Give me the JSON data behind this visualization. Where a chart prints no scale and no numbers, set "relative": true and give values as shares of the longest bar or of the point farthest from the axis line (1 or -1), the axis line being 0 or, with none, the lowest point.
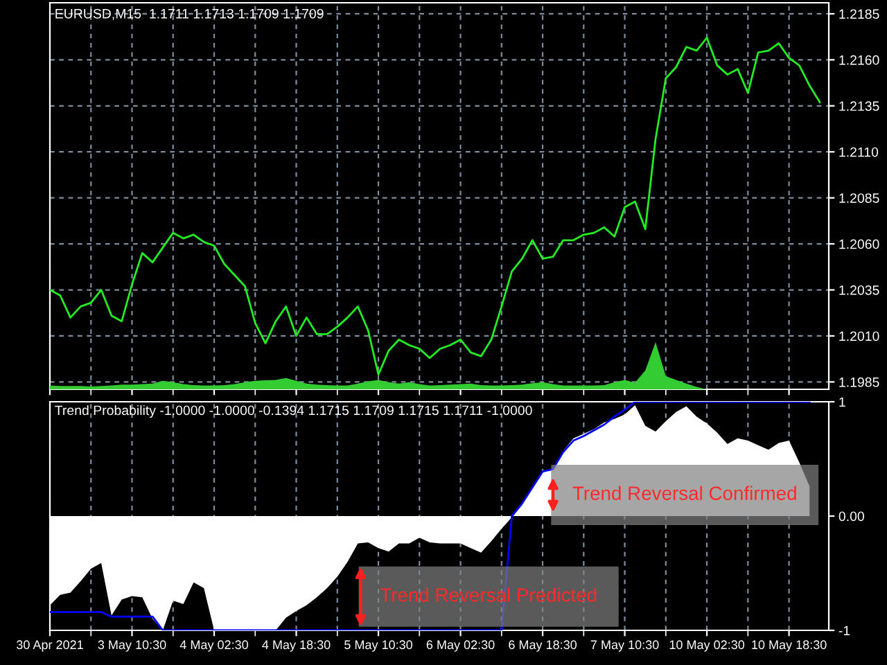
{
  "chart_data": [
    {
      "type": "line",
      "title": "EURUSD,M15  1.1711 1.1713 1.1709 1.1709",
      "categories": [
        null,
        null,
        null,
        null,
        null,
        null,
        null,
        null,
        null,
        null,
        null,
        null,
        null,
        null,
        null,
        null,
        null,
        null,
        null,
        null,
        null,
        null,
        null,
        null,
        null,
        null,
        null,
        null,
        null,
        null,
        null,
        null,
        null,
        null,
        null,
        null,
        null,
        null,
        null,
        null,
        null,
        null,
        null,
        null,
        null,
        null,
        null,
        null,
        null,
        null,
        null,
        null,
        null,
        null,
        null,
        null,
        null,
        null,
        null,
        null,
        null,
        null,
        null,
        null,
        null,
        null,
        null,
        null,
        null,
        null,
        null,
        null,
        null,
        null,
        null,
        null
      ],
      "series": [
        {
          "color": "#22ee22",
          "values": [
            1.2035,
            1.2032,
            1.202,
            1.2026,
            1.2028,
            1.2035,
            1.2021,
            1.2018,
            1.2038,
            1.2055,
            1.205,
            1.2058,
            1.2066,
            1.2063,
            1.2065,
            1.2061,
            1.2059,
            1.2049,
            1.2043,
            1.2037,
            1.2017,
            1.2006,
            1.2018,
            1.2026,
            1.201,
            1.202,
            1.2011,
            1.2011,
            1.2015,
            1.202,
            1.2026,
            1.2013,
            1.1989,
            1.2002,
            1.2008,
            1.2005,
            1.2003,
            1.1998,
            1.2003,
            1.2005,
            1.2008,
            1.2001,
            1.1999,
            1.2008,
            1.2026,
            1.2045,
            1.2052,
            1.2062,
            1.2052,
            1.2053,
            1.2062,
            1.2062,
            1.2065,
            1.2066,
            1.2069,
            1.2064,
            1.208,
            1.2083,
            1.2068,
            1.2117,
            1.215,
            1.2156,
            1.2167,
            1.2165,
            1.2172,
            1.2157,
            1.2152,
            1.2155,
            1.2142,
            1.2164,
            1.2165,
            1.2169,
            1.2161,
            1.2157,
            1.2146,
            1.2137
          ]
        }
      ],
      "ylim": [
        1.1981,
        1.2191
      ],
      "yticks": [
        {
          "value": 1.1985,
          "label": "1.1985"
        },
        {
          "value": 1.201,
          "label": "1.2010"
        },
        {
          "value": 1.2035,
          "label": "1.2035"
        },
        {
          "value": 1.206,
          "label": "1.2060"
        },
        {
          "value": 1.2085,
          "label": "1.2085"
        },
        {
          "value": 1.211,
          "label": "1.2110"
        },
        {
          "value": 1.2135,
          "label": "1.2135"
        },
        {
          "value": 1.216,
          "label": "1.2160"
        },
        {
          "value": 1.2185,
          "label": "1.2185"
        }
      ],
      "grid": true,
      "tick_labels": "y"
    },
    {
      "type": "area",
      "relative": true,
      "tick_labels": false,
      "categories": [
        null,
        null,
        null,
        null,
        null,
        null,
        null,
        null,
        null,
        null,
        null,
        null,
        null,
        null,
        null,
        null,
        null,
        null,
        null,
        null,
        null,
        null,
        null,
        null,
        null,
        null,
        null,
        null,
        null,
        null,
        null,
        null,
        null,
        null,
        null,
        null,
        null,
        null,
        null,
        null,
        null,
        null,
        null,
        null,
        null,
        null,
        null,
        null,
        null,
        null,
        null,
        null,
        null,
        null,
        null,
        null,
        null,
        null,
        null,
        null,
        null,
        null,
        null,
        null,
        null,
        null,
        null,
        null,
        null,
        null,
        null,
        null,
        null,
        null,
        null,
        null
      ],
      "series": [
        {
          "color": "#33cc33",
          "values": [
            0.08,
            0.07,
            0.07,
            0.07,
            0.06,
            0.07,
            0.08,
            0.1,
            0.1,
            0.11,
            0.12,
            0.18,
            0.15,
            0.11,
            0.09,
            0.08,
            0.08,
            0.09,
            0.11,
            0.15,
            0.18,
            0.19,
            0.2,
            0.24,
            0.18,
            0.12,
            0.1,
            0.09,
            0.08,
            0.08,
            0.12,
            0.17,
            0.2,
            0.15,
            0.12,
            0.15,
            0.11,
            0.08,
            0.09,
            0.1,
            0.11,
            0.12,
            0.09,
            0.08,
            0.08,
            0.09,
            0.1,
            0.13,
            0.15,
            0.11,
            0.08,
            0.08,
            0.08,
            0.08,
            0.09,
            0.15,
            0.2,
            0.14,
            0.4,
            1,
            0.28,
            0.2,
            0.12,
            0.05,
            0,
            null,
            null,
            null,
            null,
            null,
            null,
            null,
            null,
            null,
            null,
            null
          ]
        }
      ]
    },
    {
      "type": "area",
      "title": "Trend Probability -1.0000 -1.0000 -0.1394 1.1715 1.1709 1.1715 1.1711 -1.0000",
      "categories": [
        "30 Apr 2021",
        null,
        null,
        null,
        null,
        null,
        null,
        null,
        "3 May 10:30",
        null,
        null,
        null,
        null,
        null,
        null,
        null,
        "4 May 02:30",
        null,
        null,
        null,
        null,
        null,
        null,
        null,
        "4 May 18:30",
        null,
        null,
        null,
        null,
        null,
        null,
        null,
        "5 May 10:30",
        null,
        null,
        null,
        null,
        null,
        null,
        null,
        "6 May 02:30",
        null,
        null,
        null,
        null,
        null,
        null,
        null,
        "6 May 18:30",
        null,
        null,
        null,
        null,
        null,
        null,
        null,
        "7 May 10:30",
        null,
        null,
        null,
        null,
        null,
        null,
        null,
        "10 May 02:30",
        null,
        null,
        null,
        null,
        null,
        null,
        null,
        "10 May 18:30",
        null,
        null,
        null
      ],
      "series": [
        {
          "color": "#ffffff",
          "values": [
            -0.78,
            -0.69,
            -0.67,
            -0.57,
            -0.46,
            -0.41,
            -0.87,
            -0.73,
            -0.7,
            -0.71,
            -0.9,
            -1,
            -0.74,
            -0.77,
            -0.58,
            -0.63,
            -1,
            -1,
            -1,
            -1,
            -1,
            -1,
            -1,
            -0.89,
            -0.83,
            -0.78,
            -0.71,
            -0.63,
            -0.53,
            -0.4,
            -0.24,
            -0.23,
            -0.28,
            -0.31,
            -0.24,
            -0.24,
            -0.19,
            -0.23,
            -0.24,
            -0.24,
            -0.24,
            -0.28,
            -0.32,
            -0.22,
            -0.11,
            -0.01,
            0.1,
            0.25,
            0.39,
            0.41,
            0.57,
            0.68,
            0.72,
            0.76,
            0.82,
            0.85,
            0.89,
            0.97,
            0.79,
            0.74,
            0.83,
            0.91,
            0.96,
            0.87,
            0.81,
            0.73,
            0.63,
            0.68,
            0.66,
            0.62,
            0.58,
            0.64,
            0.66,
            0.47,
            0.26,
            null
          ]
        },
        {
          "type": "line",
          "color": "#0000ff",
          "values": [
            -0.84,
            -0.84,
            -0.84,
            -0.84,
            -0.84,
            -0.84,
            -0.88,
            -0.88,
            -0.88,
            -0.88,
            -0.88,
            -1,
            -1,
            -1,
            -1,
            -1,
            -1,
            -1,
            -1,
            -1,
            -1,
            -1,
            -1,
            -1,
            -1,
            -1,
            -1,
            -1,
            -1,
            -1,
            -1,
            -1,
            -1,
            -1,
            -1,
            -1,
            -1,
            -1,
            -1,
            -1,
            -1,
            -1,
            -1,
            -1,
            -1,
            0,
            0.11,
            0.25,
            0.39,
            0.41,
            0.56,
            0.66,
            0.7,
            0.75,
            0.8,
            0.87,
            0.93,
            1,
            1,
            1,
            1,
            1,
            1,
            1,
            1,
            1,
            1,
            1,
            1,
            1,
            1,
            1,
            1,
            1,
            1,
            null
          ]
        }
      ],
      "ylim": [
        -1,
        1
      ],
      "yticks": [
        -1,
        {
          "value": 0,
          "label": "0.00"
        },
        1
      ],
      "grid": "x",
      "annotations": [
        "Trend Reversal Confirmed",
        "Trend Reversal Predicted"
      ]
    }
  ]
}
